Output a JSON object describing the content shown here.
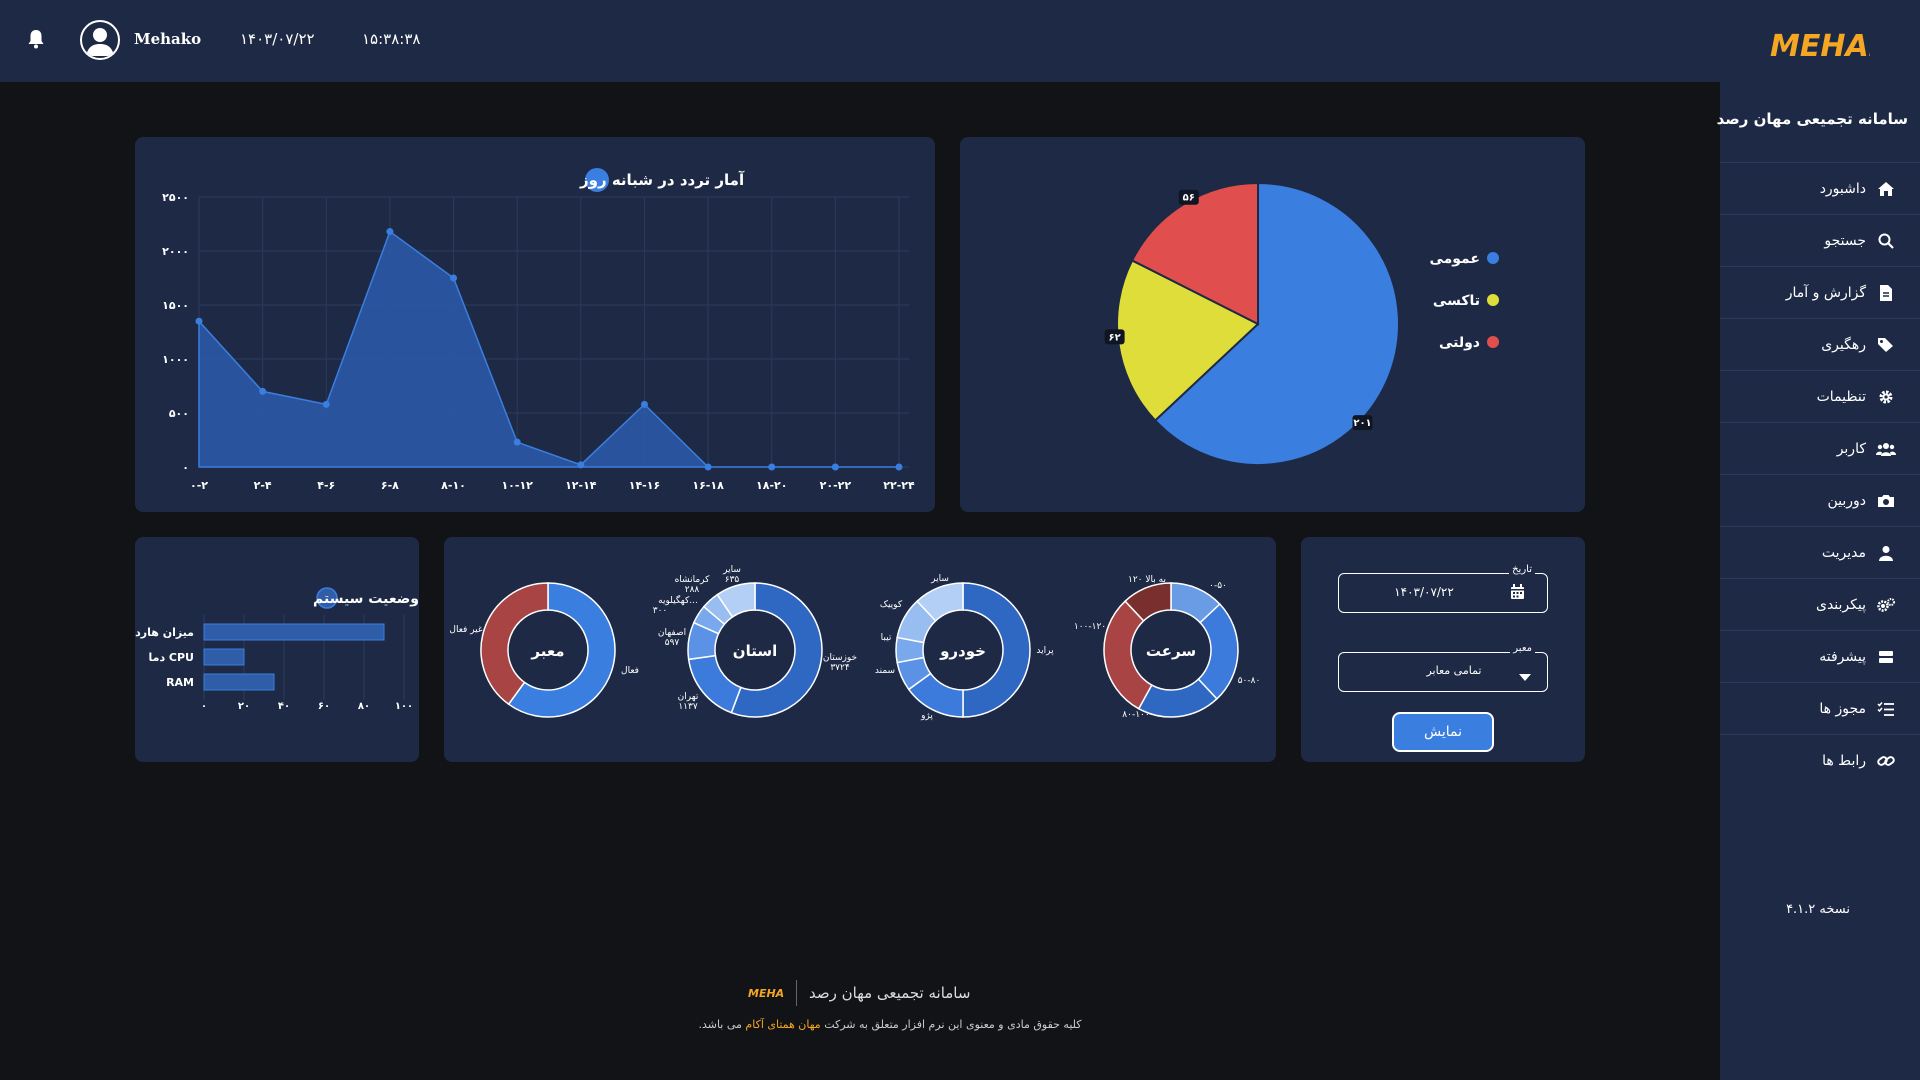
{
  "header": {
    "logo_text": "MEHAN",
    "username": "Mehako",
    "date": "۱۴۰۳/۰۷/۲۲",
    "time": "۱۵:۳۸:۳۸"
  },
  "sidebar": {
    "title": "سامانه تجمیعی مهان رصد",
    "items": [
      {
        "label": "داشبورد",
        "icon": "home-icon"
      },
      {
        "label": "جستجو",
        "icon": "search-icon"
      },
      {
        "label": "گزارش و آمار",
        "icon": "file-icon"
      },
      {
        "label": "رهگیری",
        "icon": "tags-icon"
      },
      {
        "label": "تنظیمات",
        "icon": "gear-icon"
      },
      {
        "label": "کاربر",
        "icon": "users-icon"
      },
      {
        "label": "دوربین",
        "icon": "camera-icon"
      },
      {
        "label": "مدیریت",
        "icon": "user-icon"
      },
      {
        "label": "پیکربندی",
        "icon": "gears-icon"
      },
      {
        "label": "پیشرفته",
        "icon": "server-icon"
      },
      {
        "label": "مجوز ها",
        "icon": "list-check-icon"
      },
      {
        "label": "رابط ها",
        "icon": "link-icon"
      }
    ],
    "version": "نسخه ۴.۱.۲"
  },
  "colors": {
    "bg": "#121316",
    "panel": "#1e2a45",
    "blue": "#3a7ee0",
    "yellow": "#dedd3a",
    "red": "#e04e4d",
    "brand": "#f5a623"
  },
  "area_chart": {
    "title": "آمار تردد در شبانه روز",
    "chart_data": {
      "type": "area",
      "title": "آمار تردد در شبانه روز",
      "categories": [
        "۰-۲",
        "۲-۴",
        "۴-۶",
        "۶-۸",
        "۸-۱۰",
        "۱۰-۱۲",
        "۱۲-۱۴",
        "۱۴-۱۶",
        "۱۶-۱۸",
        "۱۸-۲۰",
        "۲۰-۲۲",
        "۲۲-۲۴"
      ],
      "values": [
        1350,
        700,
        580,
        2180,
        1750,
        230,
        20,
        580,
        0,
        0,
        0,
        0
      ],
      "ylim": [
        0,
        2500
      ],
      "yticks": [
        0,
        500,
        1000,
        1500,
        2000,
        2500
      ],
      "ytick_labels": [
        "۰",
        "۵۰۰",
        "۱۰۰۰",
        "۱۵۰۰",
        "۲۰۰۰",
        "۲۵۰۰"
      ],
      "grid": true
    }
  },
  "pie_chart": {
    "chart_data": {
      "type": "pie",
      "slices": [
        {
          "name": "عمومی",
          "value": 201,
          "label": "۲۰۱",
          "color": "#3a7ee0"
        },
        {
          "name": "تاکسی",
          "value": 62,
          "label": "۶۲",
          "color": "#dedd3a"
        },
        {
          "name": "دولتی",
          "value": 56,
          "label": "۵۶",
          "color": "#e04e4d"
        }
      ],
      "legend": "left"
    }
  },
  "system_status": {
    "title": "وضعیت سیستم",
    "chart_data": {
      "type": "bar",
      "orientation": "horizontal",
      "categories": [
        "میزان هارد",
        "دما CPU",
        "RAM"
      ],
      "values": [
        90,
        20,
        35
      ],
      "xlim": [
        0,
        100
      ],
      "xticks": [
        0,
        20,
        40,
        60,
        80,
        100
      ],
      "xtick_labels": [
        "۰",
        "۲۰",
        "۴۰",
        "۶۰",
        "۸۰",
        "۱۰۰"
      ]
    }
  },
  "donuts": [
    {
      "center": "معبر",
      "chart_data": {
        "type": "pie",
        "slices": [
          {
            "name": "فعال",
            "value": 60,
            "color": "#3a7ee0"
          },
          {
            "name": "غیر فعال",
            "value": 40,
            "color": "#a94444"
          }
        ]
      }
    },
    {
      "center": "استان",
      "chart_data": {
        "type": "pie",
        "slices": [
          {
            "name": "خوزستان",
            "value": 3724,
            "label": "خوزستان\n۳۷۲۴",
            "color": "#2f68c3"
          },
          {
            "name": "تهران",
            "value": 1137,
            "label": "تهران\n۱۱۳۷",
            "color": "#3c7bdb"
          },
          {
            "name": "اصفهان",
            "value": 597,
            "label": "اصفهان\n۵۹۷",
            "color": "#5b92e6"
          },
          {
            "name": "کهگیلویه",
            "value": 300,
            "label": "کهگیلویه...\n۳۰۰",
            "color": "#7aa8ec"
          },
          {
            "name": "کرمانشاه",
            "value": 288,
            "label": "کرمانشاه\n۲۸۸",
            "color": "#98bdf1"
          },
          {
            "name": "سایر",
            "value": 635,
            "label": "سایر\n۶۳۵",
            "color": "#b3cff5"
          }
        ]
      }
    },
    {
      "center": "خودرو",
      "chart_data": {
        "type": "pie",
        "slices": [
          {
            "name": "پراید",
            "value": 50,
            "color": "#2f68c3"
          },
          {
            "name": "پژو",
            "value": 15,
            "color": "#3c7bdb"
          },
          {
            "name": "سمند",
            "value": 7,
            "color": "#5b92e6"
          },
          {
            "name": "تیبا",
            "value": 6,
            "color": "#7aa8ec"
          },
          {
            "name": "کوییک",
            "value": 10,
            "color": "#98bdf1"
          },
          {
            "name": "سایر",
            "value": 12,
            "color": "#b3cff5"
          }
        ]
      }
    },
    {
      "center": "سرعت",
      "chart_data": {
        "type": "pie",
        "slices": [
          {
            "name": "۰-۵۰",
            "value": 13,
            "color": "#6a9ce6"
          },
          {
            "name": "۵۰-۸۰",
            "value": 25,
            "color": "#3c7bdb"
          },
          {
            "name": "۸۰-۱۰۰",
            "value": 20,
            "color": "#2f68c3"
          },
          {
            "name": "۱۰۰-۱۲۰",
            "value": 30,
            "color": "#a94444"
          },
          {
            "name": "۱۲۰ به بالا",
            "value": 12,
            "color": "#7a2f2f"
          }
        ]
      }
    }
  ],
  "filter": {
    "date_label": "تاریخ",
    "date_value": "۱۴۰۳/۰۷/۲۲",
    "route_label": "معبر",
    "route_value": "تمامی معابر",
    "submit_label": "نمایش"
  },
  "footer": {
    "logo_text": "MEHAN",
    "title": "سامانه تجمیعی مهان رصد",
    "note_prefix": "کلیه حقوق مادی و معنوی این نرم افزار متعلق به شرکت",
    "note_brand": "مهان همتای آکام",
    "note_suffix": "می باشد."
  }
}
